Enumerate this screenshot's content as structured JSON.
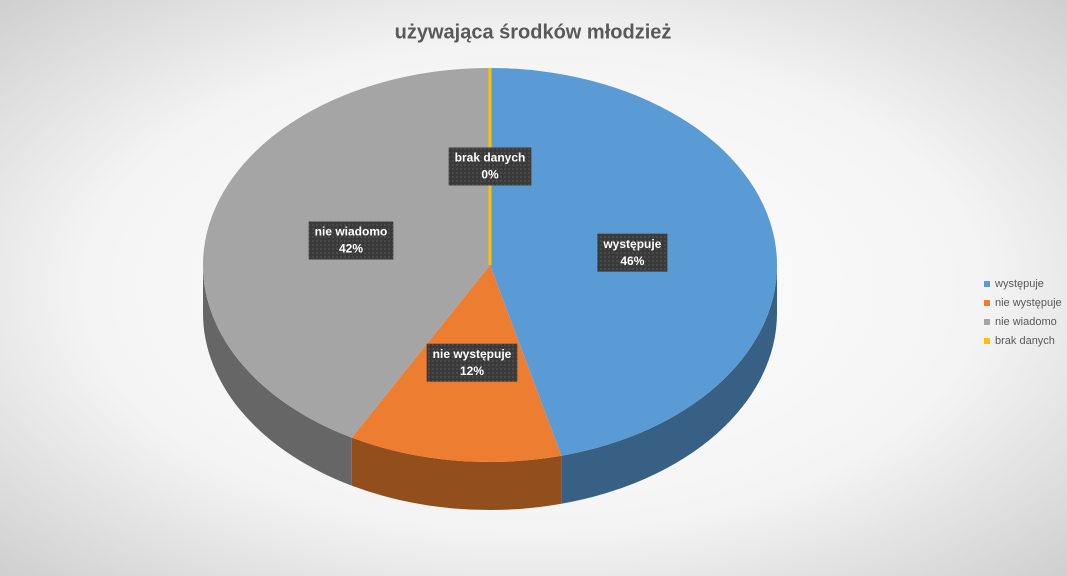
{
  "chart_data": {
    "type": "pie",
    "title": "używająca środków młodzież",
    "categories": [
      "występuje",
      "nie występuje",
      "nie wiadomo",
      "brak danych"
    ],
    "values": [
      46,
      12,
      42,
      0
    ],
    "value_labels": [
      "46%",
      "12%",
      "42%",
      "0%"
    ],
    "colors": [
      "#5b9bd5",
      "#ed7d31",
      "#a5a5a5",
      "#ffc000"
    ],
    "legend": "right"
  }
}
